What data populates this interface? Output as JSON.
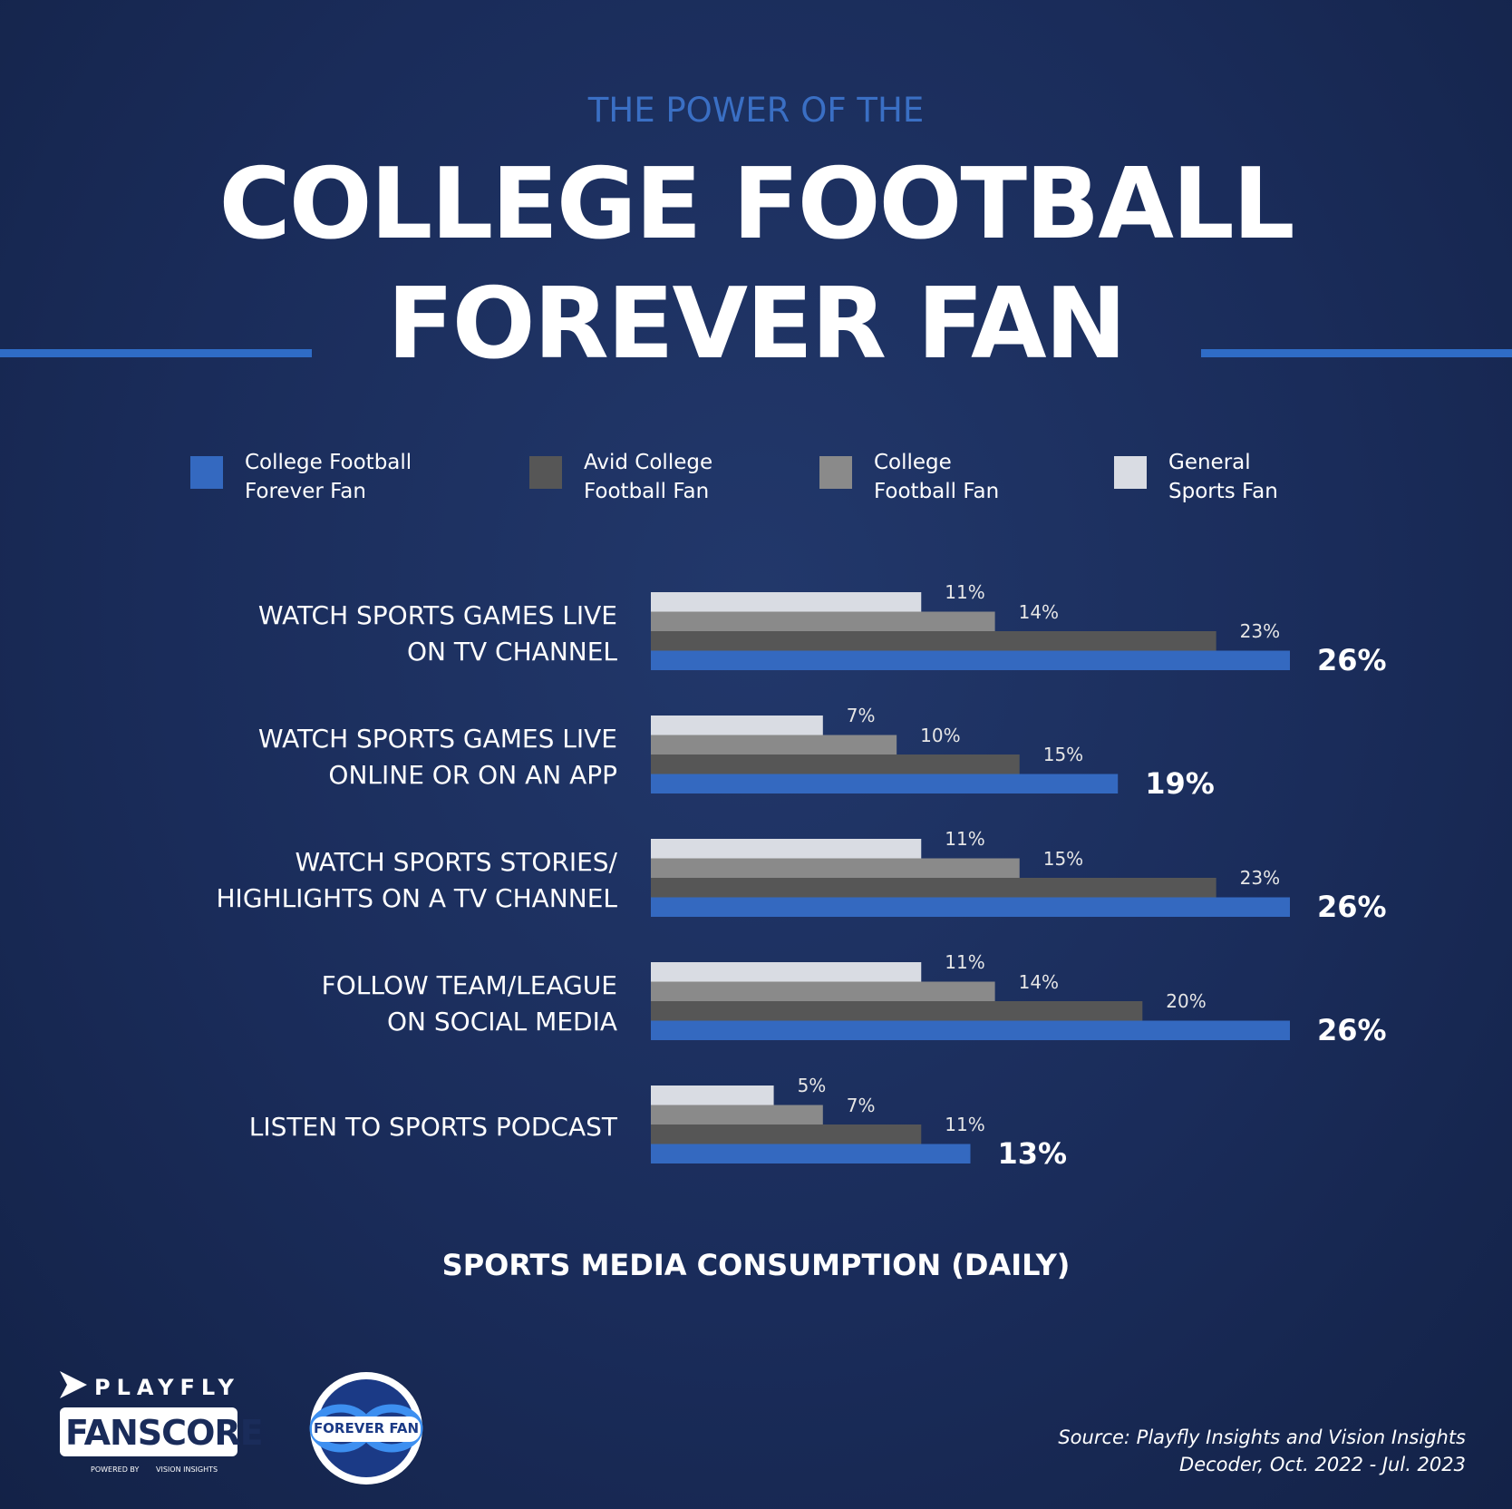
{
  "chart_data": {
    "type": "bar",
    "orientation": "horizontal",
    "supertitle": "THE POWER OF THE",
    "title": "COLLEGE FOOTBALL\nFOREVER FAN",
    "x_label": "SPORTS MEDIA CONSUMPTION (DAILY)",
    "categories": [
      "WATCH SPORTS GAMES LIVE\nON TV CHANNEL",
      "WATCH SPORTS GAMES LIVE\nONLINE OR ON AN APP",
      "WATCH SPORTS STORIES/\nHIGHLIGHTS ON A TV CHANNEL",
      "FOLLOW TEAM/LEAGUE\nON SOCIAL MEDIA",
      "LISTEN TO SPORTS PODCAST"
    ],
    "series": [
      {
        "name": "College Football\nForever Fan",
        "color": "#3469c0",
        "values": [
          26,
          19,
          26,
          26,
          13
        ],
        "value_labels": [
          "26%",
          "19%",
          "26%",
          "26%",
          "13%"
        ]
      },
      {
        "name": "Avid College\nFootball Fan",
        "color": "#565656",
        "values": [
          23,
          15,
          23,
          20,
          11
        ],
        "value_labels": [
          "23%",
          "15%",
          "23%",
          "20%",
          "11%"
        ]
      },
      {
        "name": "College\nFootball Fan",
        "color": "#8a8a8a",
        "values": [
          14,
          10,
          15,
          14,
          7
        ],
        "value_labels": [
          "14%",
          "10%",
          "15%",
          "14%",
          "7%"
        ]
      },
      {
        "name": "General\nSports Fan",
        "color": "#d9dce3",
        "values": [
          11,
          7,
          11,
          11,
          5
        ],
        "value_labels": [
          "11%",
          "7%",
          "11%",
          "11%",
          "5%"
        ]
      }
    ],
    "source": "Source: Playfly Insights and Vision Insights\nDecoder, Oct. 2022 - Jul. 2023"
  },
  "logos": {
    "playfly": "PLAYFLY",
    "fanscore": "FANSCORE",
    "powered_by": "POWERED BY",
    "vision": "VISION INSIGHTS",
    "forever_fan": "FOREVER FAN"
  }
}
